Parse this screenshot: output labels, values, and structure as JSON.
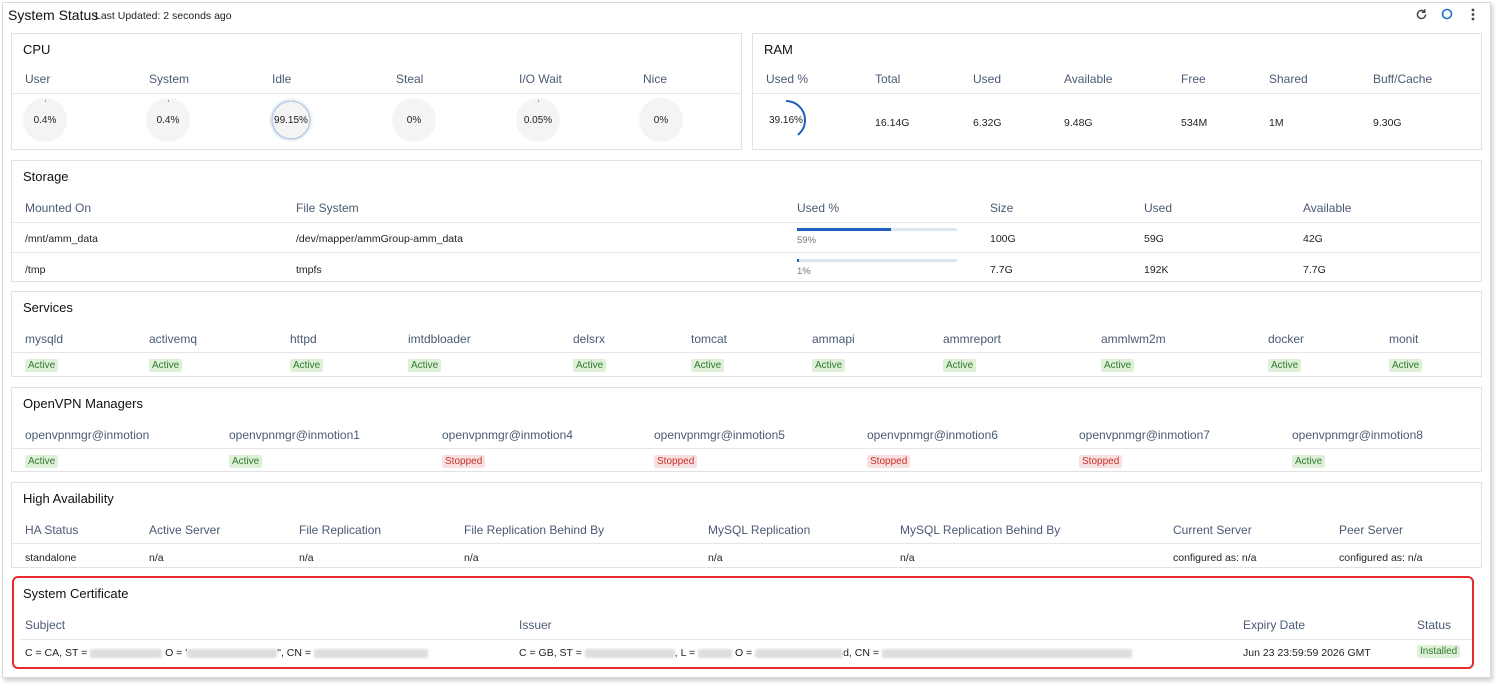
{
  "header": {
    "title": "System Status",
    "last_updated": "Last Updated: 2 seconds ago",
    "icons": [
      "refresh-icon",
      "circle-icon",
      "more-vert-icon"
    ]
  },
  "cpu": {
    "title": "CPU",
    "metrics": [
      {
        "label": "User",
        "value": "0.4%",
        "percent": 0.4
      },
      {
        "label": "System",
        "value": "0.4%",
        "percent": 0.4
      },
      {
        "label": "Idle",
        "value": "99.15%",
        "percent": 99.15
      },
      {
        "label": "Steal",
        "value": "0%",
        "percent": 0
      },
      {
        "label": "I/O Wait",
        "value": "0.05%",
        "percent": 0.05
      },
      {
        "label": "Nice",
        "value": "0%",
        "percent": 0
      }
    ]
  },
  "ram": {
    "title": "RAM",
    "used_pct": {
      "label": "Used %",
      "value": "39.16%",
      "percent": 39.16
    },
    "columns": [
      "Total",
      "Used",
      "Available",
      "Free",
      "Shared",
      "Buff/Cache"
    ],
    "values": [
      "16.14G",
      "6.32G",
      "9.48G",
      "534M",
      "1M",
      "9.30G"
    ]
  },
  "storage": {
    "title": "Storage",
    "columns": [
      "Mounted On",
      "File System",
      "Used %",
      "Size",
      "Used",
      "Available"
    ],
    "rows": [
      {
        "mount": "/mnt/amm_data",
        "fs": "/dev/mapper/ammGroup-amm_data",
        "used_pct": "59%",
        "percent": 59,
        "size": "100G",
        "used": "59G",
        "available": "42G"
      },
      {
        "mount": "/tmp",
        "fs": "tmpfs",
        "used_pct": "1%",
        "percent": 1,
        "size": "7.7G",
        "used": "192K",
        "available": "7.7G"
      }
    ]
  },
  "services": {
    "title": "Services",
    "items": [
      {
        "name": "mysqld",
        "status": "Active"
      },
      {
        "name": "activemq",
        "status": "Active"
      },
      {
        "name": "httpd",
        "status": "Active"
      },
      {
        "name": "imtdbloader",
        "status": "Active"
      },
      {
        "name": "delsrx",
        "status": "Active"
      },
      {
        "name": "tomcat",
        "status": "Active"
      },
      {
        "name": "ammapi",
        "status": "Active"
      },
      {
        "name": "ammreport",
        "status": "Active"
      },
      {
        "name": "ammlwm2m",
        "status": "Active"
      },
      {
        "name": "docker",
        "status": "Active"
      },
      {
        "name": "monit",
        "status": "Active"
      }
    ]
  },
  "openvpn": {
    "title": "OpenVPN Managers",
    "items": [
      {
        "name": "openvpnmgr@inmotion",
        "status": "Active"
      },
      {
        "name": "openvpnmgr@inmotion1",
        "status": "Active"
      },
      {
        "name": "openvpnmgr@inmotion4",
        "status": "Stopped"
      },
      {
        "name": "openvpnmgr@inmotion5",
        "status": "Stopped"
      },
      {
        "name": "openvpnmgr@inmotion6",
        "status": "Stopped"
      },
      {
        "name": "openvpnmgr@inmotion7",
        "status": "Stopped"
      },
      {
        "name": "openvpnmgr@inmotion8",
        "status": "Active"
      }
    ]
  },
  "ha": {
    "title": "High Availability",
    "columns": [
      "HA Status",
      "Active Server",
      "File Replication",
      "File Replication Behind By",
      "MySQL Replication",
      "MySQL Replication Behind By",
      "Current Server",
      "Peer Server"
    ],
    "values": [
      "standalone",
      "n/a",
      "n/a",
      "n/a",
      "n/a",
      "n/a",
      "configured as: n/a",
      "configured as: n/a"
    ]
  },
  "certificate": {
    "title": "System Certificate",
    "columns": [
      "Subject",
      "Issuer",
      "Expiry Date",
      "Status"
    ],
    "subject_parts": [
      "C = CA, ST = ",
      "O = '",
      "\", CN = "
    ],
    "issuer_parts": [
      "C = GB, ST = ",
      ", L = ",
      "O = ",
      "d, CN = "
    ],
    "expiry": "Jun 23 23:59:59 2026 GMT",
    "status": "Installed"
  },
  "colors": {
    "accent": "#1f5fbf",
    "active_bg": "#dff0d8",
    "active_fg": "#2e7a2e",
    "stopped_bg": "#f8e0e0",
    "stopped_fg": "#c9302c",
    "highlight": "#e52b2b"
  }
}
